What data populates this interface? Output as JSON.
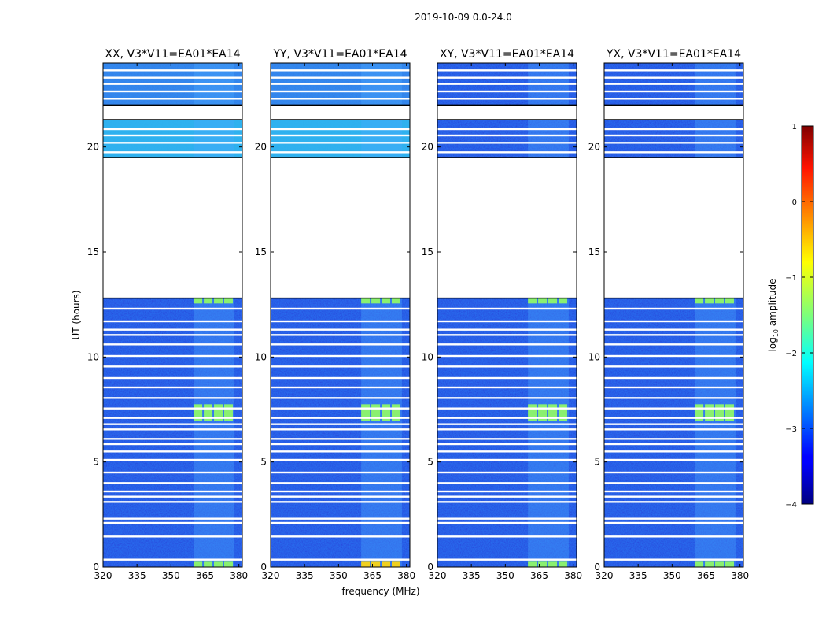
{
  "figure": {
    "suptitle": "2019-10-09 0.0-24.0"
  },
  "chart_data": {
    "type": "heatmap",
    "title": "2019-10-09 0.0-24.0",
    "xlabel": "frequency (MHz)",
    "ylabel": "UT (hours)",
    "xlim": [
      320,
      381.5
    ],
    "ylim": [
      0,
      24
    ],
    "xticks": [
      320,
      335,
      350,
      365,
      380
    ],
    "yticks": [
      0,
      5,
      10,
      15,
      20
    ],
    "panels": [
      {
        "name": "XX",
        "title": "XX, V3*V11=EA01*EA14"
      },
      {
        "name": "YY",
        "title": "YY, V3*V11=EA01*EA14"
      },
      {
        "name": "XY",
        "title": "XY, V3*V11=EA01*EA14"
      },
      {
        "name": "YX",
        "title": "YX, V3*V11=EA01*EA14"
      }
    ],
    "colorbar": {
      "label": "log10 amplitude",
      "range": [
        -4,
        1
      ],
      "ticks": [
        1,
        0,
        -1,
        -2,
        -3,
        -4
      ],
      "colormap": "jet"
    },
    "data_gaps_hours": [
      [
        12.8,
        19.5
      ],
      [
        21.3,
        22.0
      ]
    ],
    "rfi_band_mhz": [
      360,
      378
    ],
    "notes": "Dynamic spectra: log10 amplitude per frequency channel (MHz) vs UT (hours); white horizontal lines are flagged integrations."
  }
}
